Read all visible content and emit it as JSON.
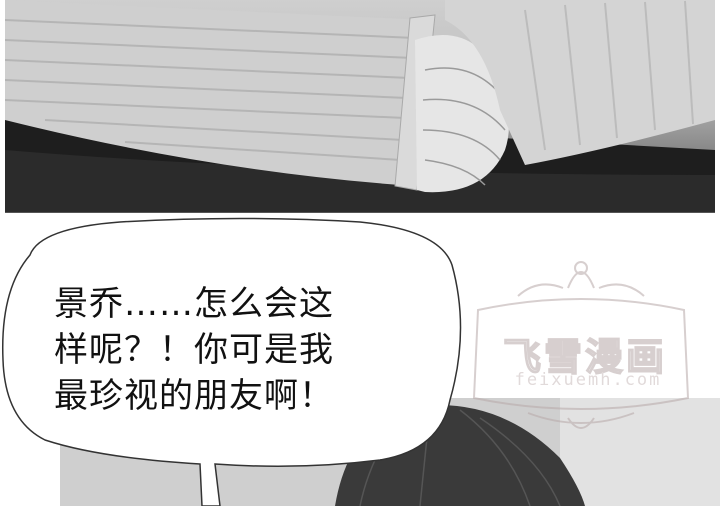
{
  "speech_bubble": {
    "lines": [
      "景乔……怎么会这",
      "样呢？！你可是我",
      "最珍视的朋友啊！"
    ]
  },
  "watermark": {
    "title": "飞雪漫画",
    "url": "feixuemh.com"
  },
  "colors": {
    "ink": "#111111",
    "watermark": "#b8a9a9"
  }
}
